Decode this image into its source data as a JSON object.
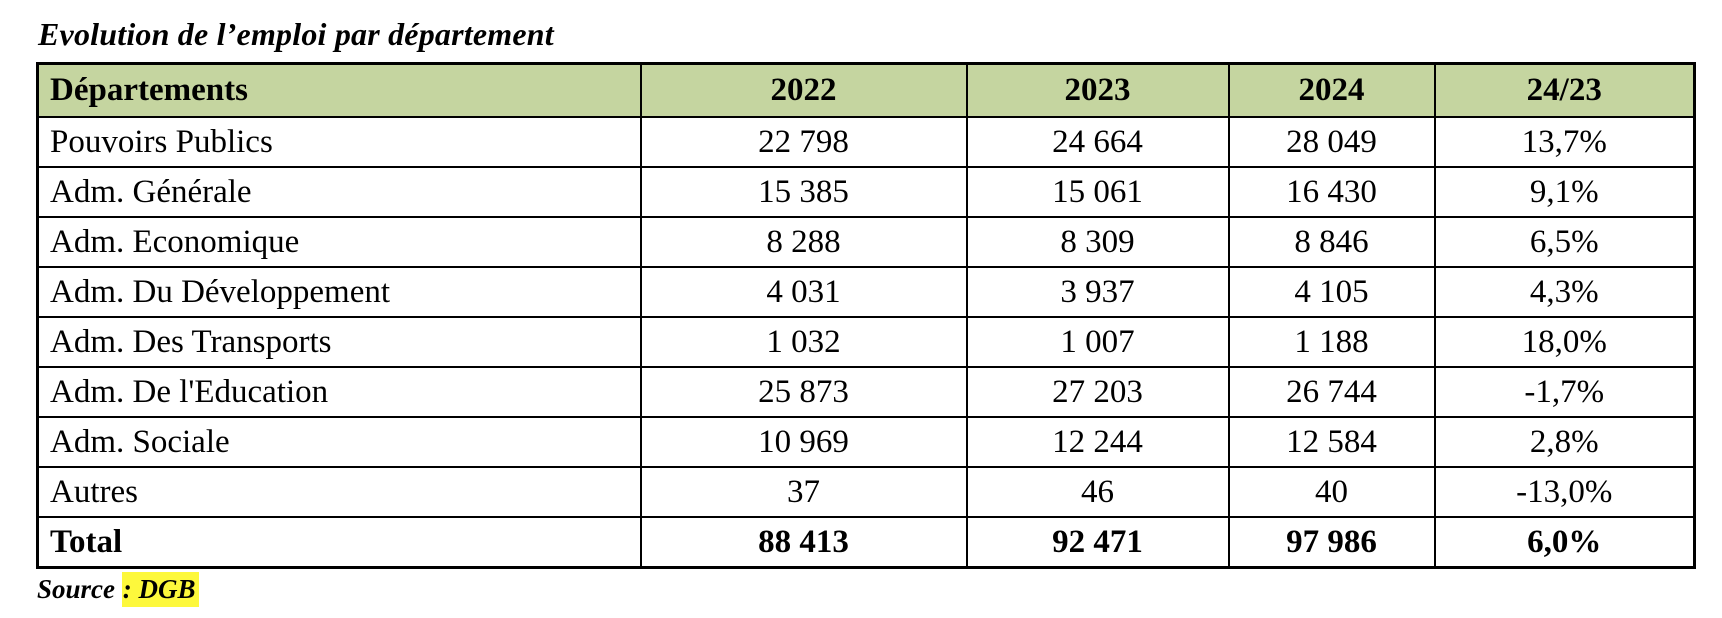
{
  "title": "Evolution de l’emploi par département",
  "table": {
    "columns": [
      "Départements",
      "2022",
      "2023",
      "2024",
      "24/23"
    ],
    "rows": [
      {
        "label": "Pouvoirs Publics",
        "values": [
          "22 798",
          "24 664",
          "28 049",
          "13,7%"
        ],
        "bold": false
      },
      {
        "label": "Adm. Générale",
        "values": [
          "15 385",
          "15 061",
          "16 430",
          "9,1%"
        ],
        "bold": false
      },
      {
        "label": "Adm. Economique",
        "values": [
          "8 288",
          "8 309",
          "8 846",
          "6,5%"
        ],
        "bold": false
      },
      {
        "label": "Adm. Du Développement",
        "values": [
          "4 031",
          "3 937",
          "4 105",
          "4,3%"
        ],
        "bold": false
      },
      {
        "label": "Adm. Des Transports",
        "values": [
          "1 032",
          "1 007",
          "1 188",
          "18,0%"
        ],
        "bold": false
      },
      {
        "label": "Adm. De l'Education",
        "values": [
          "25 873",
          "27 203",
          "26 744",
          "-1,7%"
        ],
        "bold": false
      },
      {
        "label": "Adm. Sociale",
        "values": [
          "10 969",
          "12 244",
          "12 584",
          "2,8%"
        ],
        "bold": false
      },
      {
        "label": "Autres",
        "values": [
          "37",
          "46",
          "40",
          "-13,0%"
        ],
        "bold": false
      },
      {
        "label": "Total",
        "values": [
          "88 413",
          "92 471",
          "97 986",
          "6,0%"
        ],
        "bold": true
      }
    ]
  },
  "source": {
    "prefix": "Source ",
    "highlighted": ": DGB"
  },
  "colors": {
    "header_bg": "#c5d5a0",
    "highlight": "#fdf83c",
    "border": "#000000"
  }
}
